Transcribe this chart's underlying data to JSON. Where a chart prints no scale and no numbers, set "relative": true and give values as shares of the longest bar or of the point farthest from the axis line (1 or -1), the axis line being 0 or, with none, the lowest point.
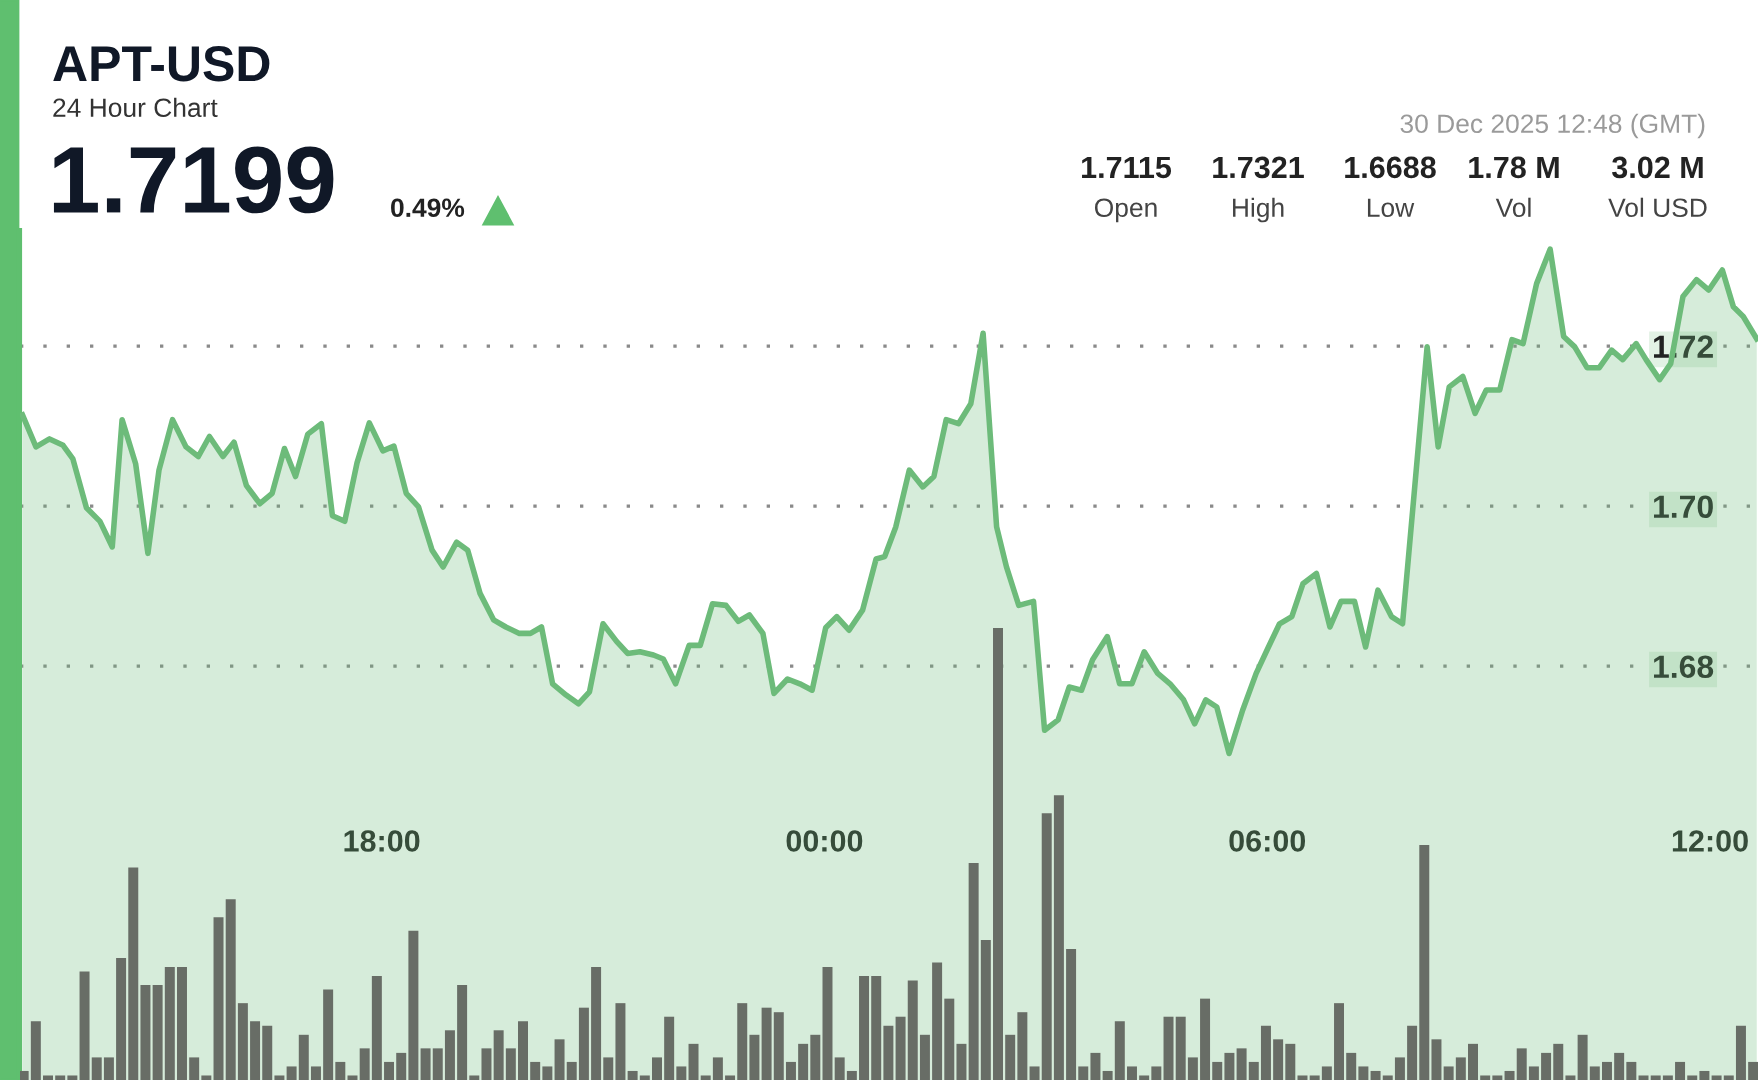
{
  "chart_data": [
    {
      "type": "area",
      "title": "APT-USD",
      "subtitle": "24 Hour Chart",
      "color": "#6dbb7a",
      "annotations": [
        "1.7199",
        "0.49%",
        "30 Dec 2025 12:48 (GMT)",
        "1.7115",
        "Open",
        "1.7321",
        "High",
        "1.6688",
        "Low",
        "1.78 M",
        "Vol",
        "3.02 M",
        "Vol USD"
      ],
      "x": [
        "2025-12-29T13:08",
        "2025-12-29T13:19",
        "2025-12-29T13:30",
        "2025-12-29T13:41",
        "2025-12-29T13:49",
        "2025-12-29T14:00",
        "2025-12-29T14:11",
        "2025-12-29T14:21",
        "2025-12-29T14:29",
        "2025-12-29T14:40",
        "2025-12-29T14:50",
        "2025-12-29T14:59",
        "2025-12-29T15:10",
        "2025-12-29T15:21",
        "2025-12-29T15:31",
        "2025-12-29T15:40",
        "2025-12-29T15:51",
        "2025-12-29T16:00",
        "2025-12-29T16:10",
        "2025-12-29T16:21",
        "2025-12-29T16:31",
        "2025-12-29T16:41",
        "2025-12-29T16:50",
        "2025-12-29T17:00",
        "2025-12-29T17:11",
        "2025-12-29T17:20",
        "2025-12-29T17:30",
        "2025-12-29T17:40",
        "2025-12-29T17:50",
        "2025-12-29T18:01",
        "2025-12-29T18:10",
        "2025-12-29T18:20",
        "2025-12-29T18:30",
        "2025-12-29T18:41",
        "2025-12-29T18:50",
        "2025-12-29T19:01",
        "2025-12-29T19:10",
        "2025-12-29T19:20",
        "2025-12-29T19:31",
        "2025-12-29T19:41",
        "2025-12-29T19:52",
        "2025-12-29T20:01",
        "2025-12-29T20:10",
        "2025-12-29T20:19",
        "2025-12-29T20:30",
        "2025-12-29T20:40",
        "2025-12-29T20:49",
        "2025-12-29T21:00",
        "2025-12-29T21:11",
        "2025-12-29T21:20",
        "2025-12-29T21:30",
        "2025-12-29T21:41",
        "2025-12-29T21:49",
        "2025-12-29T21:59",
        "2025-12-29T22:10",
        "2025-12-29T22:19",
        "2025-12-29T22:29",
        "2025-12-29T22:40",
        "2025-12-29T22:50",
        "2025-12-29T22:59",
        "2025-12-29T23:10",
        "2025-12-29T23:19",
        "2025-12-29T23:30",
        "2025-12-29T23:40",
        "2025-12-29T23:50",
        "2025-12-30T00:01",
        "2025-12-30T00:10",
        "2025-12-30T00:20",
        "2025-12-30T00:31",
        "2025-12-30T00:42",
        "2025-12-30T00:49",
        "2025-12-30T00:58",
        "2025-12-30T01:09",
        "2025-12-30T01:20",
        "2025-12-30T01:29",
        "2025-12-30T01:39",
        "2025-12-30T01:49",
        "2025-12-30T01:59",
        "2025-12-30T02:09",
        "2025-12-30T02:20",
        "2025-12-30T02:28",
        "2025-12-30T02:38",
        "2025-12-30T02:50",
        "2025-12-30T02:59",
        "2025-12-30T03:10",
        "2025-12-30T03:19",
        "2025-12-30T03:29",
        "2025-12-30T03:38",
        "2025-12-30T03:50",
        "2025-12-30T04:00",
        "2025-12-30T04:10",
        "2025-12-30T04:20",
        "2025-12-30T04:31",
        "2025-12-30T04:41",
        "2025-12-30T04:52",
        "2025-12-30T05:01",
        "2025-12-30T05:10",
        "2025-12-30T05:19",
        "2025-12-30T05:29",
        "2025-12-30T05:40",
        "2025-12-30T05:51",
        "2025-12-30T06:01",
        "2025-12-30T06:10",
        "2025-12-30T06:20",
        "2025-12-30T06:29",
        "2025-12-30T06:40",
        "2025-12-30T06:51",
        "2025-12-30T07:00",
        "2025-12-30T07:11",
        "2025-12-30T07:20",
        "2025-12-30T07:30",
        "2025-12-30T07:41",
        "2025-12-30T07:50",
        "2025-12-30T07:59",
        "2025-12-30T08:10",
        "2025-12-30T08:19",
        "2025-12-30T08:28",
        "2025-12-30T08:39",
        "2025-12-30T08:49",
        "2025-12-30T08:58",
        "2025-12-30T09:09",
        "2025-12-30T09:19",
        "2025-12-30T09:28",
        "2025-12-30T09:39",
        "2025-12-30T09:50",
        "2025-12-30T10:01",
        "2025-12-30T10:10",
        "2025-12-30T10:20",
        "2025-12-30T10:30",
        "2025-12-30T10:40",
        "2025-12-30T10:49",
        "2025-12-30T11:00",
        "2025-12-30T11:08",
        "2025-12-30T11:19",
        "2025-12-30T11:28",
        "2025-12-30T11:38",
        "2025-12-30T11:49",
        "2025-12-30T11:59",
        "2025-12-30T12:10",
        "2025-12-30T12:19",
        "2025-12-30T12:27",
        "2025-12-30T12:38"
      ],
      "values": [
        1.7114,
        1.7074,
        1.7084,
        1.7076,
        1.7059,
        1.6998,
        1.6981,
        1.6949,
        1.7108,
        1.7053,
        1.6941,
        1.7045,
        1.7108,
        1.7074,
        1.7062,
        1.7087,
        1.7062,
        1.708,
        1.7026,
        1.7003,
        1.7016,
        1.7072,
        1.7037,
        1.709,
        1.7103,
        1.6988,
        1.6981,
        1.7054,
        1.7104,
        1.7069,
        1.7075,
        1.7016,
        1.6999,
        1.6945,
        1.6924,
        1.6955,
        1.6945,
        1.6891,
        1.6858,
        1.6849,
        1.6841,
        1.6841,
        1.6849,
        1.6778,
        1.6764,
        1.6753,
        1.6768,
        1.6853,
        1.6831,
        1.6816,
        1.6818,
        1.6814,
        1.6809,
        1.6778,
        1.6826,
        1.6826,
        1.6878,
        1.6876,
        1.6856,
        1.6864,
        1.6841,
        1.6766,
        1.6784,
        1.6778,
        1.677,
        1.6848,
        1.6862,
        1.6845,
        1.687,
        1.6934,
        1.6937,
        1.6974,
        1.7045,
        1.7024,
        1.7037,
        1.7108,
        1.7103,
        1.7128,
        1.7216,
        1.6974,
        1.6924,
        1.6876,
        1.6881,
        1.672,
        1.6733,
        1.6774,
        1.677,
        1.6808,
        1.6837,
        1.6778,
        1.6778,
        1.6818,
        1.6791,
        1.6778,
        1.6758,
        1.6728,
        1.6758,
        1.6749,
        1.6691,
        1.6745,
        1.6791,
        1.6824,
        1.6853,
        1.6862,
        1.6903,
        1.6916,
        1.6849,
        1.6881,
        1.6881,
        1.6824,
        1.6895,
        1.6862,
        1.6853,
        1.7008,
        1.7199,
        1.7074,
        1.7149,
        1.7162,
        1.7116,
        1.7145,
        1.7145,
        1.7208,
        1.7203,
        1.7278,
        1.7321,
        1.7212,
        1.7199,
        1.7173,
        1.7173,
        1.7195,
        1.7183,
        1.7203,
        1.7183,
        1.7158,
        1.7178,
        1.7262,
        1.7283,
        1.727,
        1.7295,
        1.7249,
        1.7237,
        1.7209
      ],
      "xlim": [
        "2025-12-29T13:06",
        "2025-12-30T12:39"
      ],
      "xticks": [
        {
          "value": "2025-12-29T18:00",
          "label": "18:00"
        },
        {
          "value": "2025-12-30T00:00",
          "label": "00:00"
        },
        {
          "value": "2025-12-30T06:00",
          "label": "06:00"
        },
        {
          "value": "2025-12-30T12:00",
          "label": "12:00"
        }
      ],
      "ylim": [
        1.6283,
        1.7345
      ],
      "yticks": [
        1.68,
        {
          "value": 1.7,
          "label": "1.70"
        },
        1.72
      ],
      "grid": "y"
    },
    {
      "type": "bar",
      "relative": true,
      "color": "#686d66",
      "categories": [
        null,
        null,
        null,
        null,
        null,
        null,
        null,
        null,
        null,
        null,
        null,
        null,
        null,
        null,
        null,
        null,
        null,
        null,
        null,
        null,
        null,
        null,
        null,
        null,
        null,
        null,
        null,
        null,
        null,
        null,
        null,
        null,
        null,
        null,
        null,
        null,
        null,
        null,
        null,
        null,
        null,
        null,
        null,
        null,
        null,
        null,
        null,
        null,
        null,
        null,
        null,
        null,
        null,
        null,
        null,
        null,
        null,
        null,
        null,
        null,
        null,
        null,
        null,
        null,
        null,
        null,
        null,
        null,
        null,
        null,
        null,
        null,
        null,
        null,
        null,
        null,
        null,
        null,
        null,
        null,
        null,
        null,
        null,
        null,
        null,
        null,
        null,
        null,
        null,
        null,
        null,
        null,
        null,
        null,
        null,
        null,
        null,
        null,
        null,
        null,
        null,
        null,
        null,
        null,
        null,
        null,
        null,
        null,
        null,
        null,
        null,
        null,
        null,
        null,
        null,
        null,
        null,
        null,
        null,
        null,
        null,
        null,
        null,
        null,
        null,
        null,
        null,
        null,
        null,
        null,
        null,
        null,
        null,
        null,
        null,
        null,
        null,
        null,
        null,
        null,
        null,
        null,
        null
      ],
      "values": [
        0.02,
        0.13,
        0.01,
        0.01,
        0.01,
        0.24,
        0.05,
        0.05,
        0.27,
        0.47,
        0.21,
        0.21,
        0.25,
        0.25,
        0.05,
        0.01,
        0.36,
        0.4,
        0.17,
        0.13,
        0.12,
        0.01,
        0.03,
        0.1,
        0.03,
        0.2,
        0.04,
        0.01,
        0.07,
        0.23,
        0.04,
        0.06,
        0.33,
        0.07,
        0.07,
        0.11,
        0.21,
        0.01,
        0.07,
        0.11,
        0.07,
        0.13,
        0.04,
        0.03,
        0.09,
        0.04,
        0.16,
        0.25,
        0.05,
        0.17,
        0.02,
        0.01,
        0.05,
        0.14,
        0.03,
        0.08,
        0.01,
        0.05,
        0.01,
        0.17,
        0.1,
        0.16,
        0.15,
        0.04,
        0.08,
        0.1,
        0.25,
        0.05,
        0.02,
        0.23,
        0.23,
        0.12,
        0.14,
        0.22,
        0.1,
        0.26,
        0.18,
        0.08,
        0.48,
        0.31,
        1.0,
        0.1,
        0.15,
        0.03,
        0.59,
        0.63,
        0.29,
        0.03,
        0.06,
        0.02,
        0.13,
        0.03,
        0.01,
        0.03,
        0.14,
        0.14,
        0.05,
        0.18,
        0.04,
        0.06,
        0.07,
        0.04,
        0.12,
        0.09,
        0.08,
        0.01,
        0.01,
        0.03,
        0.17,
        0.06,
        0.03,
        0.02,
        0.01,
        0.05,
        0.12,
        0.52,
        0.09,
        0.03,
        0.05,
        0.08,
        0.01,
        0.01,
        0.02,
        0.07,
        0.03,
        0.06,
        0.08,
        0.01,
        0.1,
        0.03,
        0.04,
        0.06,
        0.04,
        0.01,
        0.01,
        0.01,
        0.04,
        0.01,
        0.02,
        0.01,
        0.01,
        0.12,
        0.04
      ]
    }
  ]
}
